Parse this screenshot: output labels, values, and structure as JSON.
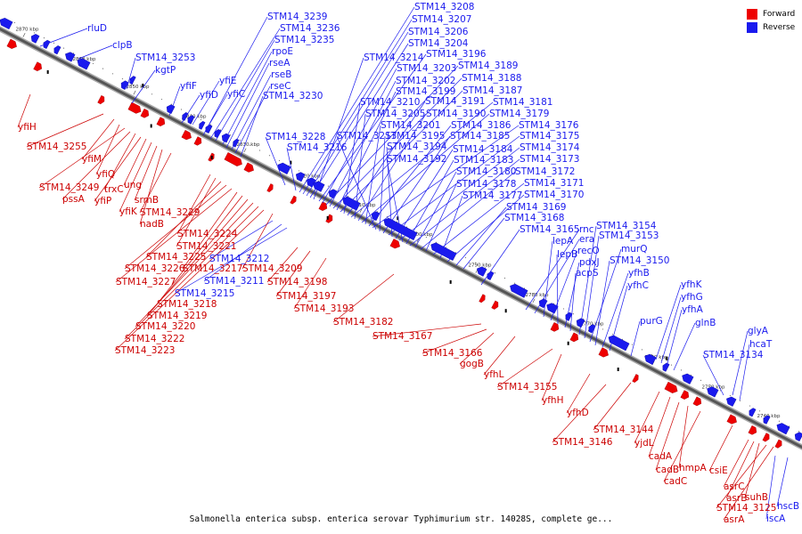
{
  "caption": "Salmonella enterica subsp. enterica serovar Typhimurium str. 14028S, complete ge...",
  "legend": {
    "forward_label": "Forward",
    "reverse_label": "Reverse",
    "forward_color": "#ee0000",
    "reverse_color": "#1a1aee"
  },
  "ticks": [
    "2870 kbp",
    "2860 kbp",
    "2850 kbp",
    "2840 kbp",
    "2830 kbp",
    "2820 kbp",
    "2810 kbp",
    "2800 kbp",
    "2790 kbp",
    "2780 kbp",
    "2770 kbp",
    "2760 kbp",
    "2750 kbp",
    "2740 kbp"
  ],
  "forward_labels": [
    "yfiH",
    "STM14_3255",
    "yfiM",
    "yfiQ",
    "STM14_3249",
    "pssA",
    "trxC",
    "yfiP",
    "ung",
    "yfiK",
    "srmB",
    "nadB",
    "STM14_3229",
    "STM14_3224",
    "STM14_3221",
    "STM14_3225",
    "STM14_3226",
    "STM14_3227",
    "STM14_3217",
    "STM14_3218",
    "STM14_3219",
    "STM14_3220",
    "STM14_3222",
    "STM14_3223",
    "STM14_3209",
    "STM14_3198",
    "STM14_3197",
    "STM14_3193",
    "STM14_3182",
    "STM14_3167",
    "STM14_3166",
    "gogB",
    "yfhL",
    "STM14_3155",
    "yfhH",
    "yfhD",
    "STM14_3144",
    "STM14_3146",
    "yjdL",
    "cadA",
    "cadB",
    "hmpA",
    "cadC",
    "csiE",
    "asrC",
    "asrB",
    "suhB",
    "STM14_3125",
    "asrA"
  ],
  "reverse_labels": [
    "rluD",
    "clpB",
    "STM14_3253",
    "kgtP",
    "yfiF",
    "yfiD",
    "yfiE",
    "yfiC",
    "STM14_3239",
    "STM14_3236",
    "STM14_3235",
    "rpoE",
    "rseA",
    "rseB",
    "rseC",
    "STM14_3230",
    "STM14_3228",
    "STM14_3216",
    "STM14_3208",
    "STM14_3207",
    "STM14_3206",
    "STM14_3204",
    "STM14_3214",
    "STM14_3196",
    "STM14_3203",
    "STM14_3189",
    "STM14_3202",
    "STM14_3188",
    "STM14_3199",
    "STM14_3187",
    "STM14_3210",
    "STM14_3191",
    "STM14_3181",
    "STM14_3205",
    "STM14_3190",
    "STM14_3179",
    "STM14_3201",
    "STM14_3186",
    "STM14_3176",
    "STM14_3213",
    "STM14_3195",
    "STM14_3185",
    "STM14_3175",
    "STM14_3194",
    "STM14_3184",
    "STM14_3174",
    "STM14_3192",
    "STM14_3183",
    "STM14_3173",
    "STM14_3180",
    "STM14_3172",
    "STM14_3178",
    "STM14_3171",
    "STM14_3177",
    "STM14_3170",
    "STM14_3169",
    "STM14_3168",
    "STM14_3165",
    "rnc",
    "era",
    "lepA",
    "recO",
    "lepB",
    "pdxJ",
    "acpS",
    "STM14_3154",
    "STM14_3153",
    "murQ",
    "STM14_3150",
    "yfhB",
    "yfhC",
    "yfhK",
    "yfhG",
    "yfhA",
    "glnB",
    "purG",
    "STM14_3134",
    "glyA",
    "hcaT",
    "hscB",
    "iscA",
    "STM14_3212",
    "STM14_3211",
    "STM14_3215"
  ]
}
